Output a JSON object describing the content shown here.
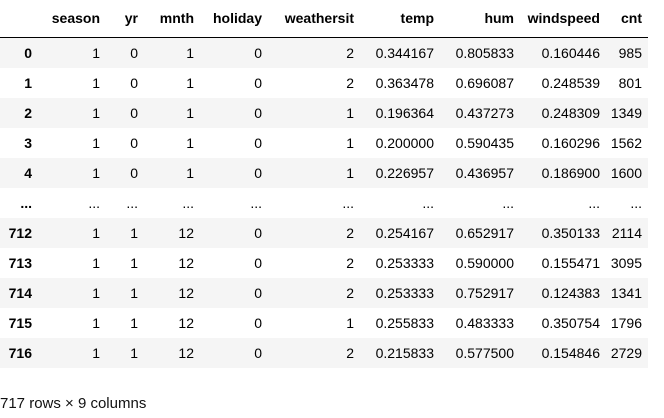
{
  "table": {
    "index_header": "",
    "columns": [
      "season",
      "yr",
      "mnth",
      "holiday",
      "weathersit",
      "temp",
      "hum",
      "windspeed",
      "cnt"
    ],
    "rows": [
      {
        "index": "0",
        "cells": [
          "1",
          "0",
          "1",
          "0",
          "2",
          "0.344167",
          "0.805833",
          "0.160446",
          "985"
        ]
      },
      {
        "index": "1",
        "cells": [
          "1",
          "0",
          "1",
          "0",
          "2",
          "0.363478",
          "0.696087",
          "0.248539",
          "801"
        ]
      },
      {
        "index": "2",
        "cells": [
          "1",
          "0",
          "1",
          "0",
          "1",
          "0.196364",
          "0.437273",
          "0.248309",
          "1349"
        ]
      },
      {
        "index": "3",
        "cells": [
          "1",
          "0",
          "1",
          "0",
          "1",
          "0.200000",
          "0.590435",
          "0.160296",
          "1562"
        ]
      },
      {
        "index": "4",
        "cells": [
          "1",
          "0",
          "1",
          "0",
          "1",
          "0.226957",
          "0.436957",
          "0.186900",
          "1600"
        ]
      },
      {
        "index": "...",
        "cells": [
          "...",
          "...",
          "...",
          "...",
          "...",
          "...",
          "...",
          "...",
          "..."
        ]
      },
      {
        "index": "712",
        "cells": [
          "1",
          "1",
          "12",
          "0",
          "2",
          "0.254167",
          "0.652917",
          "0.350133",
          "2114"
        ]
      },
      {
        "index": "713",
        "cells": [
          "1",
          "1",
          "12",
          "0",
          "2",
          "0.253333",
          "0.590000",
          "0.155471",
          "3095"
        ]
      },
      {
        "index": "714",
        "cells": [
          "1",
          "1",
          "12",
          "0",
          "2",
          "0.253333",
          "0.752917",
          "0.124383",
          "1341"
        ]
      },
      {
        "index": "715",
        "cells": [
          "1",
          "1",
          "12",
          "0",
          "1",
          "0.255833",
          "0.483333",
          "0.350754",
          "1796"
        ]
      },
      {
        "index": "716",
        "cells": [
          "1",
          "1",
          "12",
          "0",
          "2",
          "0.215833",
          "0.577500",
          "0.154846",
          "2729"
        ]
      }
    ]
  },
  "shape_note": "717 rows × 9 columns",
  "colors": {
    "stripe": "#f5f5f5",
    "background": "#ffffff",
    "header_rule": "#000000"
  }
}
